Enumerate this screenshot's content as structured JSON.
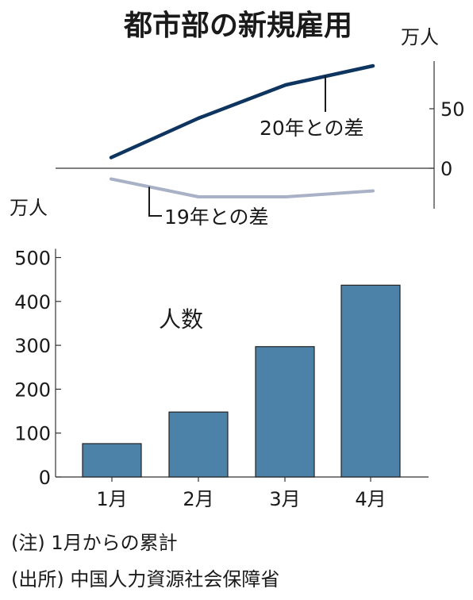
{
  "chart_data": [
    {
      "type": "line",
      "title": "都市部の新規雇用",
      "unit": "万人",
      "y_ticks": [
        0,
        50
      ],
      "ylim": [
        -34,
        90
      ],
      "x": [
        "1月",
        "2月",
        "3月",
        "4月"
      ],
      "series": [
        {
          "name": "20年との差",
          "values": [
            9,
            42,
            70,
            86
          ],
          "color": "#0e3560"
        },
        {
          "name": "19年との差",
          "values": [
            -9,
            -24,
            -24,
            -19
          ],
          "color": "#a9b1c7"
        }
      ]
    },
    {
      "type": "bar",
      "unit": "万人",
      "label": "人数",
      "categories": [
        "1月",
        "2月",
        "3月",
        "4月"
      ],
      "values": [
        76,
        148,
        297,
        437
      ],
      "y_ticks": [
        0,
        100,
        200,
        300,
        400,
        500
      ],
      "ylim": [
        0,
        520
      ],
      "color": "#4c82a8"
    }
  ],
  "notes": [
    "(注) 1月からの累計",
    "(出所) 中国人力資源社会保障省"
  ]
}
